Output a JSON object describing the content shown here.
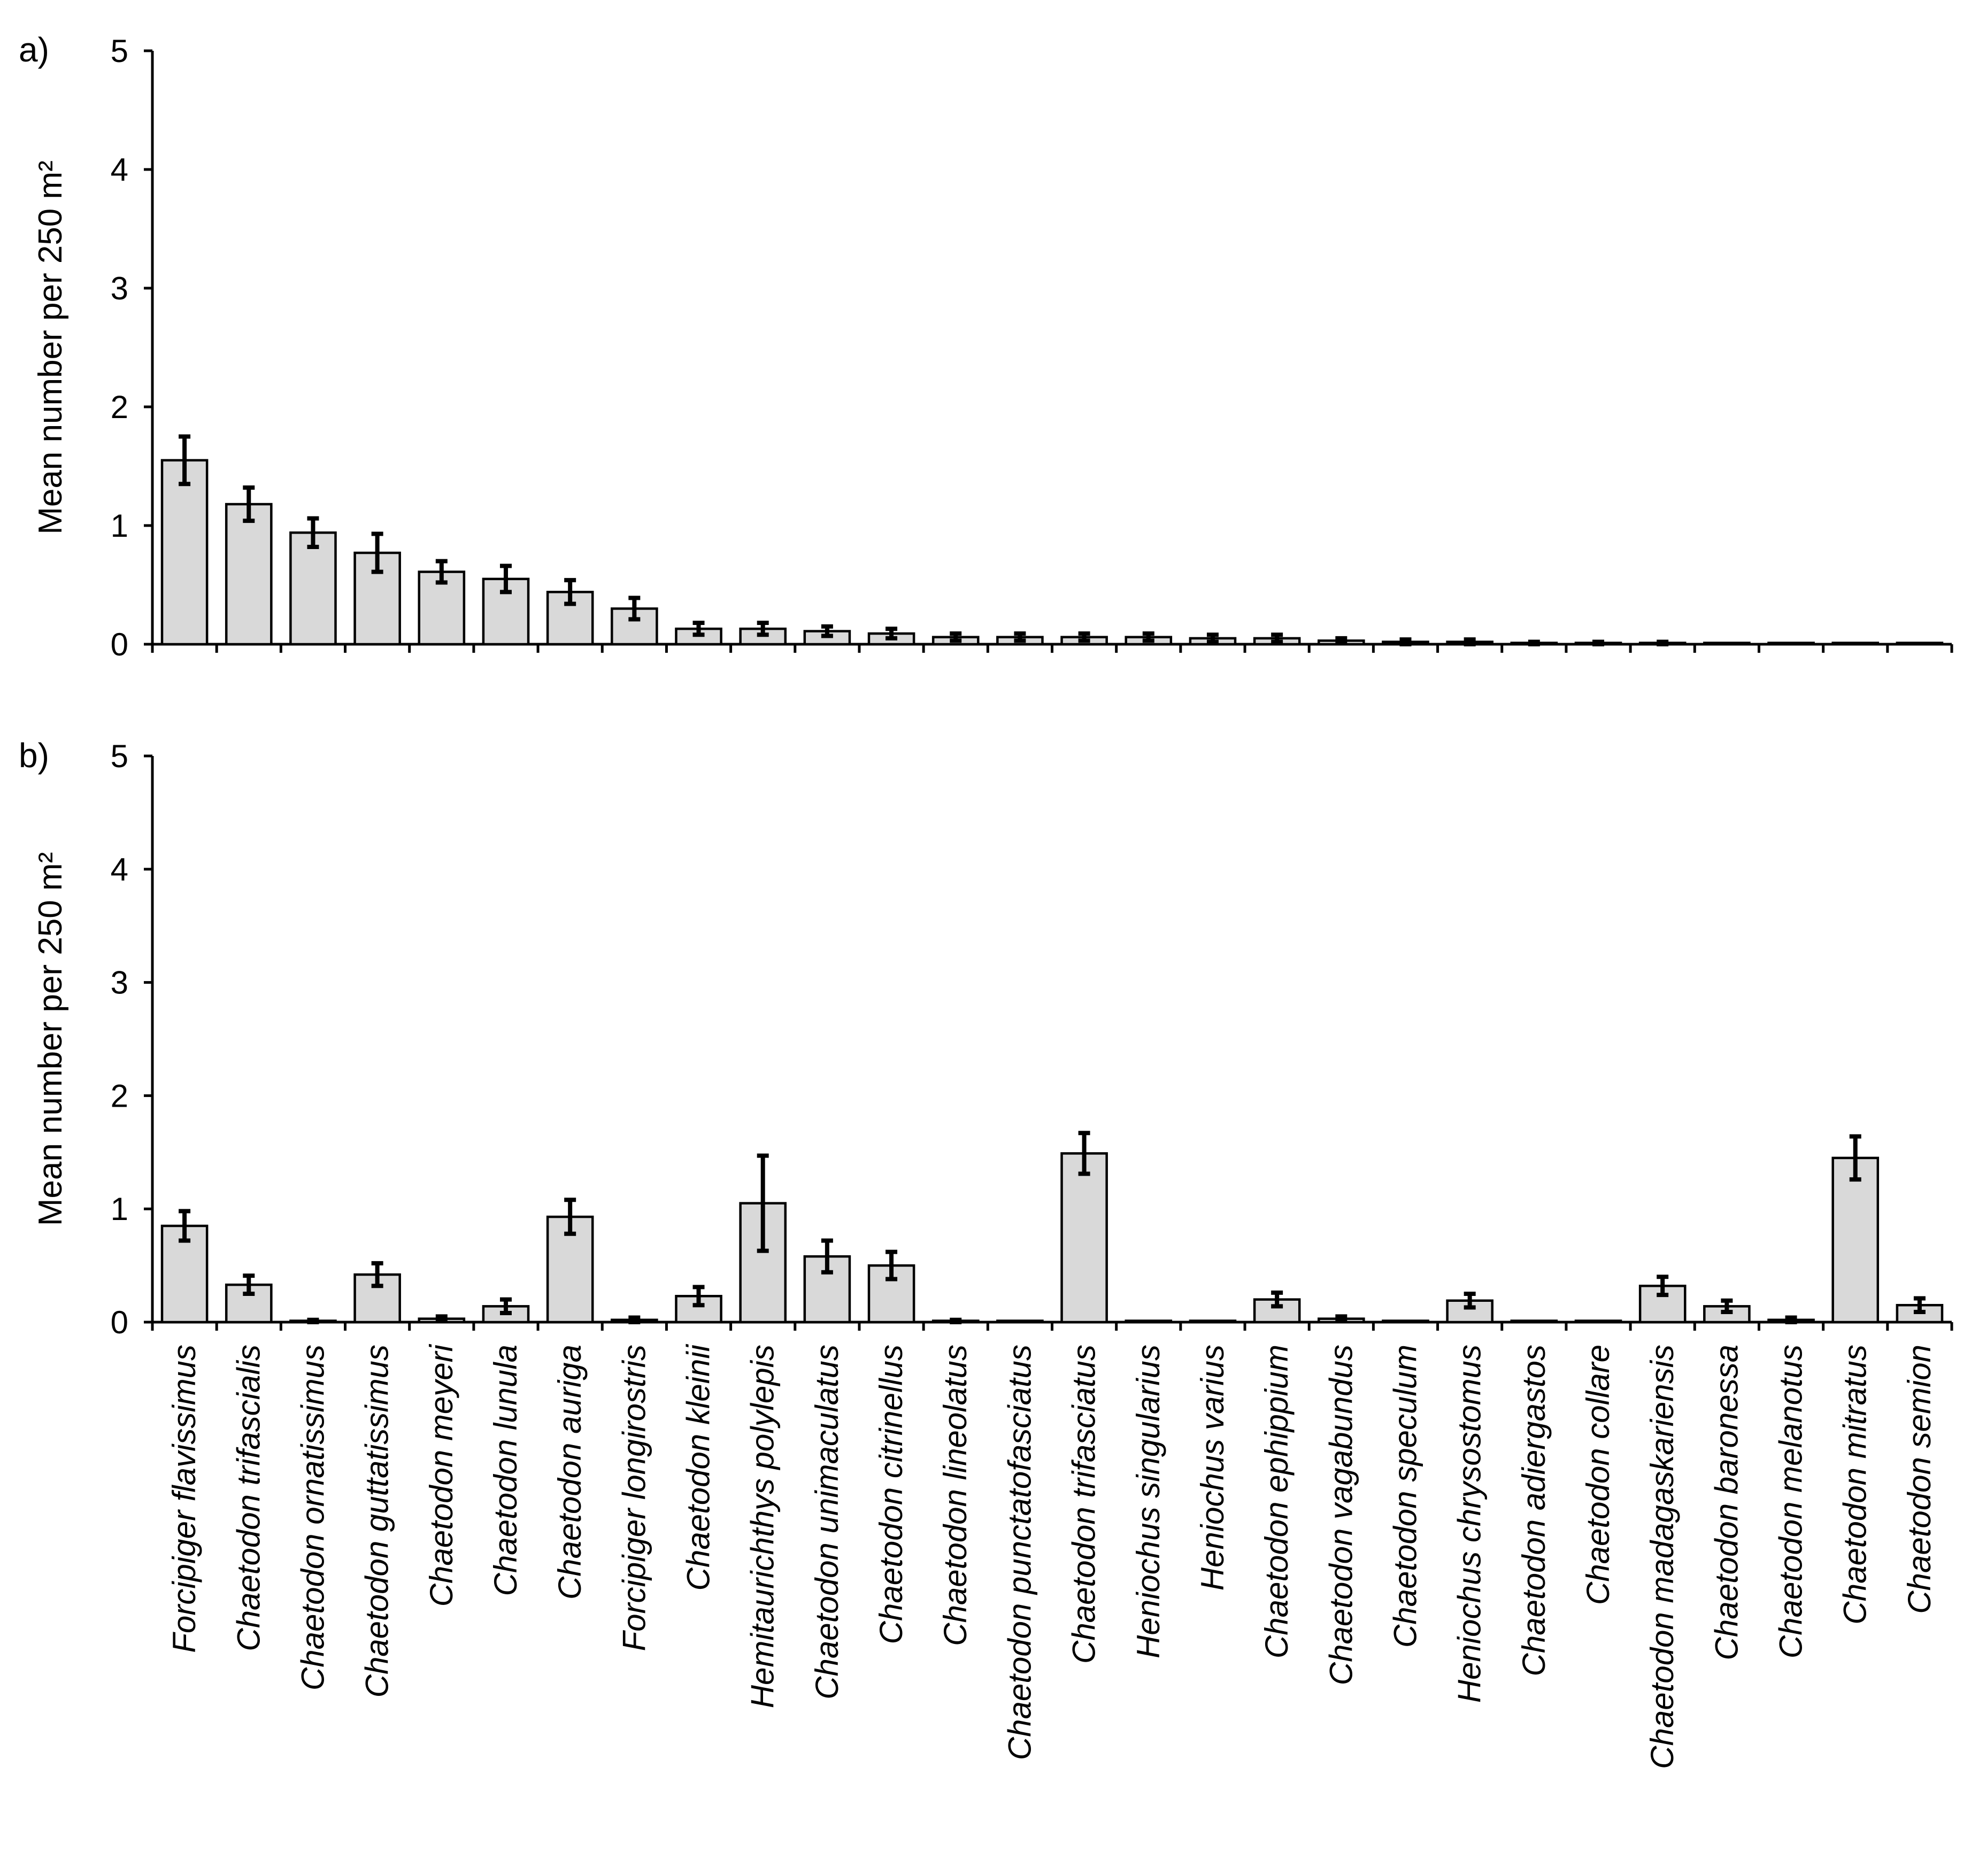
{
  "chart_data": [
    {
      "type": "bar",
      "panel_label": "a)",
      "title": "",
      "xlabel": "",
      "ylabel": "Mean number per 250 m²",
      "ylim": [
        0,
        5
      ],
      "yticks": [
        "0",
        "1",
        "2",
        "3",
        "4",
        "5"
      ],
      "show_category_labels": false,
      "categories": [
        "Forcipiger flavissimus",
        "Chaetodon trifascialis",
        "Chaetodon ornatissimus",
        "Chaetodon guttatissimus",
        "Chaetodon meyeri",
        "Chaetodon lunula",
        "Chaetodon auriga",
        "Forcipiger longirostris",
        "Chaetodon kleinii",
        "Hemitaurichthys polylepis",
        "Chaetodon unimaculatus",
        "Chaetodon citrinellus",
        "Chaetodon lineolatus",
        "Chaetodon punctatofasciatus",
        "Chaetodon trifasciatus",
        "Heniochus singularius",
        "Heniochus varius",
        "Chaetodon ephippium",
        "Chaetodon vagabundus",
        "Chaetodon speculum",
        "Heniochus chrysostomus",
        "Chaetodon adiergastos",
        "Chaetodon collare",
        "Chaetodon madagaskariensis",
        "Chaetodon baronessa",
        "Chaetodon melanotus",
        "Chaetodon mitratus",
        "Chaetodon semion"
      ],
      "values": [
        1.55,
        1.18,
        0.94,
        0.77,
        0.61,
        0.55,
        0.44,
        0.3,
        0.13,
        0.13,
        0.11,
        0.09,
        0.06,
        0.06,
        0.06,
        0.06,
        0.05,
        0.05,
        0.03,
        0.02,
        0.02,
        0.01,
        0.01,
        0.01,
        0.0,
        0.0,
        0.0,
        0.0
      ],
      "errors": [
        0.2,
        0.14,
        0.12,
        0.16,
        0.09,
        0.11,
        0.1,
        0.09,
        0.05,
        0.05,
        0.04,
        0.04,
        0.03,
        0.03,
        0.03,
        0.03,
        0.03,
        0.03,
        0.02,
        0.02,
        0.02,
        0.01,
        0.01,
        0.01,
        0.0,
        0.0,
        0.0,
        0.0
      ]
    },
    {
      "type": "bar",
      "panel_label": "b)",
      "title": "",
      "xlabel": "",
      "ylabel": "Mean number per 250 m²",
      "ylim": [
        0,
        5
      ],
      "yticks": [
        "0",
        "1",
        "2",
        "3",
        "4",
        "5"
      ],
      "show_category_labels": true,
      "categories": [
        "Forcipiger flavissimus",
        "Chaetodon trifascialis",
        "Chaetodon ornatissimus",
        "Chaetodon guttatissimus",
        "Chaetodon meyeri",
        "Chaetodon lunula",
        "Chaetodon auriga",
        "Forcipiger longirostris",
        "Chaetodon kleinii",
        "Hemitaurichthys polylepis",
        "Chaetodon unimaculatus",
        "Chaetodon citrinellus",
        "Chaetodon lineolatus",
        "Chaetodon punctatofasciatus",
        "Chaetodon trifasciatus",
        "Heniochus singularius",
        "Heniochus varius",
        "Chaetodon ephippium",
        "Chaetodon vagabundus",
        "Chaetodon speculum",
        "Heniochus chrysostomus",
        "Chaetodon adiergastos",
        "Chaetodon collare",
        "Chaetodon madagaskariensis",
        "Chaetodon baronessa",
        "Chaetodon melanotus",
        "Chaetodon mitratus",
        "Chaetodon semion"
      ],
      "values": [
        0.85,
        0.33,
        0.01,
        0.42,
        0.03,
        0.14,
        0.93,
        0.02,
        0.23,
        1.05,
        0.58,
        0.5,
        0.01,
        0.0,
        1.49,
        0.0,
        0.0,
        0.2,
        0.03,
        0.0,
        0.19,
        0.0,
        0.0,
        0.32,
        0.14,
        0.02,
        1.45,
        0.15
      ],
      "errors": [
        0.13,
        0.08,
        0.01,
        0.1,
        0.02,
        0.06,
        0.15,
        0.02,
        0.08,
        0.42,
        0.14,
        0.12,
        0.01,
        0.0,
        0.18,
        0.0,
        0.0,
        0.06,
        0.02,
        0.0,
        0.06,
        0.0,
        0.0,
        0.08,
        0.05,
        0.02,
        0.19,
        0.06
      ]
    }
  ]
}
